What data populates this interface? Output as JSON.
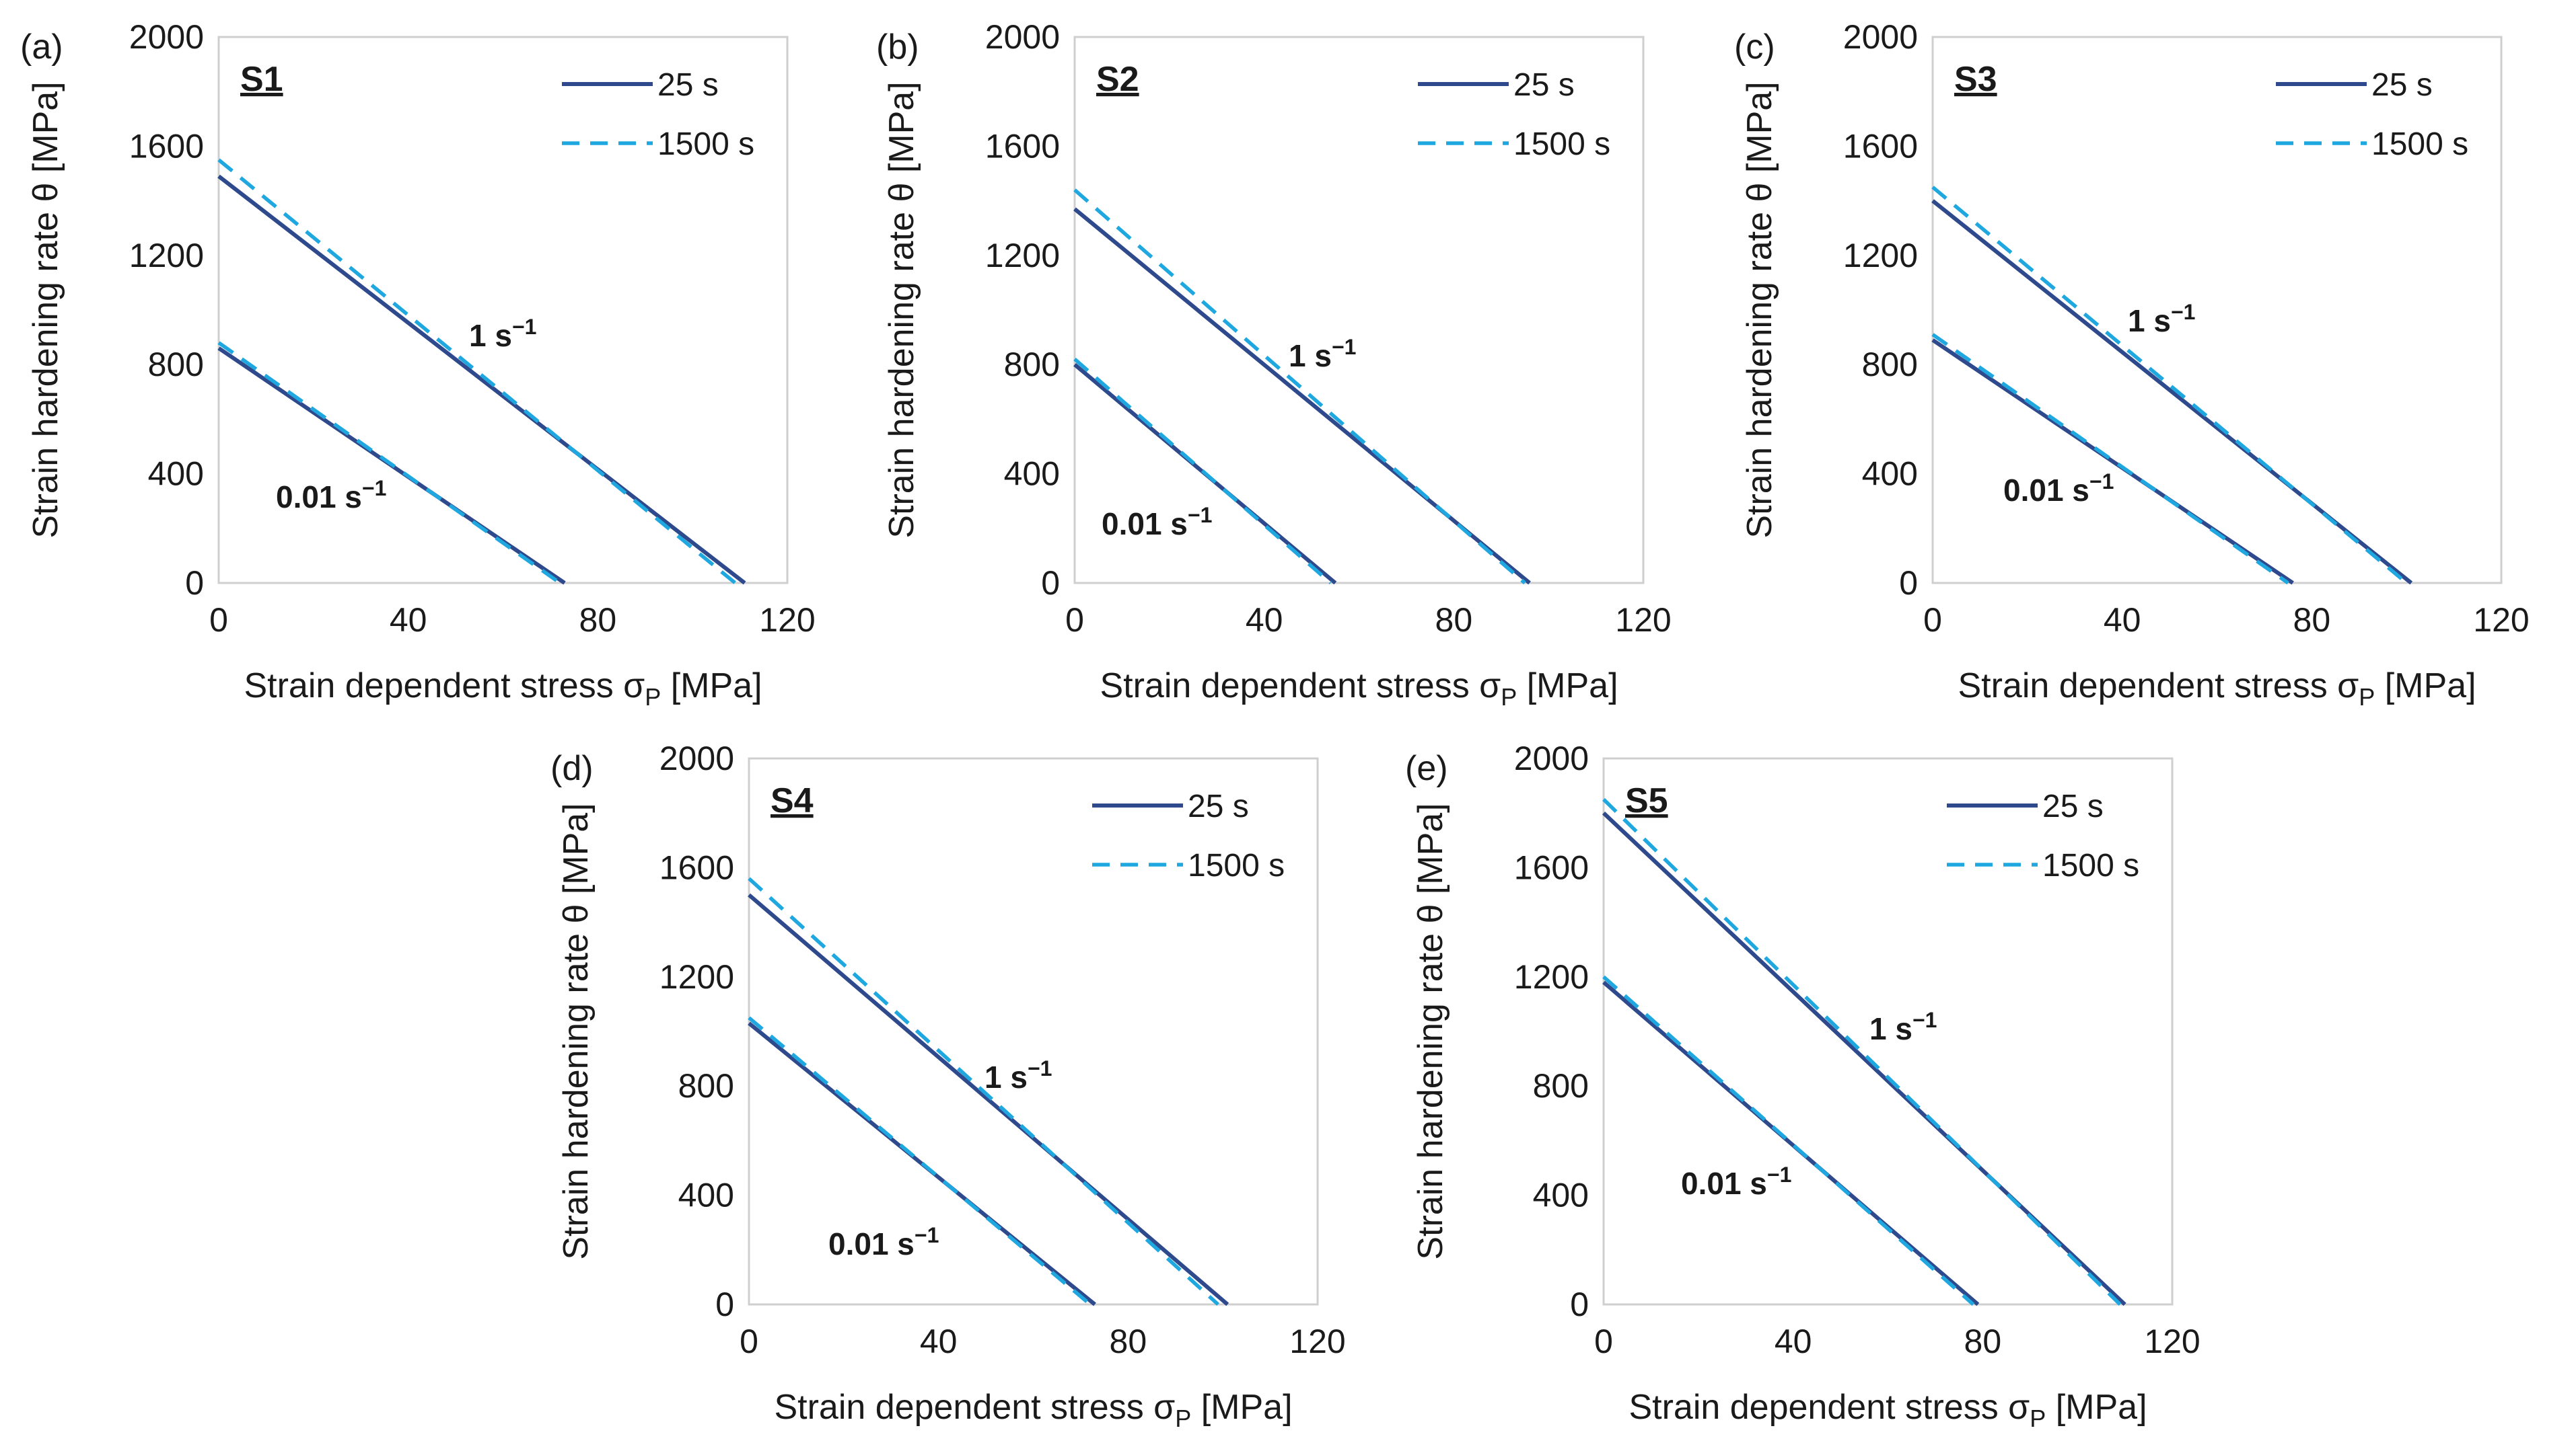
{
  "chart_data": [
    {
      "type": "line",
      "panel_label": "(a)",
      "sample": "S1",
      "xlabel": "Strain dependent stress σP [MPa]",
      "ylabel": "Strain hardening rate θ [MPa]",
      "xlim": [
        0,
        120
      ],
      "ylim": [
        0,
        2000
      ],
      "xticks": [
        "0",
        "40",
        "80",
        "120"
      ],
      "yticks": [
        "0",
        "400",
        "800",
        "1200",
        "1600",
        "2000"
      ],
      "legend": [
        "25 s",
        "1500 s"
      ],
      "rate_labels": [
        {
          "base": "1 s",
          "sup": "−1"
        },
        {
          "base": "0.01 s",
          "sup": "−1"
        }
      ],
      "series": [
        {
          "name": "1 s-1, 25 s",
          "style": "solid",
          "x": [
            0,
            111
          ],
          "y": [
            1490,
            0
          ]
        },
        {
          "name": "1 s-1, 1500 s",
          "style": "dashed",
          "x": [
            0,
            109
          ],
          "y": [
            1550,
            0
          ]
        },
        {
          "name": "0.01 s-1, 25 s",
          "style": "solid",
          "x": [
            0,
            73
          ],
          "y": [
            860,
            0
          ]
        },
        {
          "name": "0.01 s-1, 1500 s",
          "style": "dashed",
          "x": [
            0,
            72
          ],
          "y": [
            880,
            0
          ]
        }
      ]
    },
    {
      "type": "line",
      "panel_label": "(b)",
      "sample": "S2",
      "xlabel": "Strain dependent stress σP [MPa]",
      "ylabel": "Strain hardening rate θ [MPa]",
      "xlim": [
        0,
        120
      ],
      "ylim": [
        0,
        2000
      ],
      "xticks": [
        "0",
        "40",
        "80",
        "120"
      ],
      "yticks": [
        "0",
        "400",
        "800",
        "1200",
        "1600",
        "2000"
      ],
      "legend": [
        "25 s",
        "1500 s"
      ],
      "rate_labels": [
        {
          "base": "1 s",
          "sup": "−1"
        },
        {
          "base": "0.01 s",
          "sup": "−1"
        }
      ],
      "series": [
        {
          "name": "1 s-1, 25 s",
          "style": "solid",
          "x": [
            0,
            96
          ],
          "y": [
            1370,
            0
          ]
        },
        {
          "name": "1 s-1, 1500 s",
          "style": "dashed",
          "x": [
            0,
            95
          ],
          "y": [
            1440,
            0
          ]
        },
        {
          "name": "0.01 s-1, 25 s",
          "style": "solid",
          "x": [
            0,
            55
          ],
          "y": [
            800,
            0
          ]
        },
        {
          "name": "0.01 s-1, 1500 s",
          "style": "dashed",
          "x": [
            0,
            54
          ],
          "y": [
            820,
            0
          ]
        }
      ]
    },
    {
      "type": "line",
      "panel_label": "(c)",
      "sample": "S3",
      "xlabel": "Strain dependent stress σP [MPa]",
      "ylabel": "Strain hardening rate θ [MPa]",
      "xlim": [
        0,
        120
      ],
      "ylim": [
        0,
        2000
      ],
      "xticks": [
        "0",
        "40",
        "80",
        "120"
      ],
      "yticks": [
        "0",
        "400",
        "800",
        "1200",
        "1600",
        "2000"
      ],
      "legend": [
        "25 s",
        "1500 s"
      ],
      "rate_labels": [
        {
          "base": "1 s",
          "sup": "−1"
        },
        {
          "base": "0.01 s",
          "sup": "−1"
        }
      ],
      "series": [
        {
          "name": "1 s-1, 25 s",
          "style": "solid",
          "x": [
            0,
            101
          ],
          "y": [
            1400,
            0
          ]
        },
        {
          "name": "1 s-1, 1500 s",
          "style": "dashed",
          "x": [
            0,
            100
          ],
          "y": [
            1450,
            0
          ]
        },
        {
          "name": "0.01 s-1, 25 s",
          "style": "solid",
          "x": [
            0,
            76
          ],
          "y": [
            890,
            0
          ]
        },
        {
          "name": "0.01 s-1, 1500 s",
          "style": "dashed",
          "x": [
            0,
            75
          ],
          "y": [
            910,
            0
          ]
        }
      ]
    },
    {
      "type": "line",
      "panel_label": "(d)",
      "sample": "S4",
      "xlabel": "Strain dependent stress σP [MPa]",
      "ylabel": "Strain hardening rate θ [MPa]",
      "xlim": [
        0,
        120
      ],
      "ylim": [
        0,
        2000
      ],
      "xticks": [
        "0",
        "40",
        "80",
        "120"
      ],
      "yticks": [
        "0",
        "400",
        "800",
        "1200",
        "1600",
        "2000"
      ],
      "legend": [
        "25 s",
        "1500 s"
      ],
      "rate_labels": [
        {
          "base": "1 s",
          "sup": "−1"
        },
        {
          "base": "0.01 s",
          "sup": "−1"
        }
      ],
      "series": [
        {
          "name": "1 s-1, 25 s",
          "style": "solid",
          "x": [
            0,
            101
          ],
          "y": [
            1500,
            0
          ]
        },
        {
          "name": "1 s-1, 1500 s",
          "style": "dashed",
          "x": [
            0,
            99
          ],
          "y": [
            1560,
            0
          ]
        },
        {
          "name": "0.01 s-1, 25 s",
          "style": "solid",
          "x": [
            0,
            73
          ],
          "y": [
            1030,
            0
          ]
        },
        {
          "name": "0.01 s-1, 1500 s",
          "style": "dashed",
          "x": [
            0,
            72
          ],
          "y": [
            1050,
            0
          ]
        }
      ]
    },
    {
      "type": "line",
      "panel_label": "(e)",
      "sample": "S5",
      "xlabel": "Strain dependent stress σP [MPa]",
      "ylabel": "Strain hardening rate θ [MPa]",
      "xlim": [
        0,
        120
      ],
      "ylim": [
        0,
        2000
      ],
      "xticks": [
        "0",
        "40",
        "80",
        "120"
      ],
      "yticks": [
        "0",
        "400",
        "800",
        "1200",
        "1600",
        "2000"
      ],
      "legend": [
        "25 s",
        "1500 s"
      ],
      "rate_labels": [
        {
          "base": "1 s",
          "sup": "−1"
        },
        {
          "base": "0.01 s",
          "sup": "−1"
        }
      ],
      "series": [
        {
          "name": "1 s-1, 25 s",
          "style": "solid",
          "x": [
            0,
            110
          ],
          "y": [
            1800,
            0
          ]
        },
        {
          "name": "1 s-1, 1500 s",
          "style": "dashed",
          "x": [
            0,
            109
          ],
          "y": [
            1850,
            0
          ]
        },
        {
          "name": "0.01 s-1, 25 s",
          "style": "solid",
          "x": [
            0,
            79
          ],
          "y": [
            1180,
            0
          ]
        },
        {
          "name": "0.01 s-1, 1500 s",
          "style": "dashed",
          "x": [
            0,
            78
          ],
          "y": [
            1200,
            0
          ]
        }
      ]
    }
  ]
}
